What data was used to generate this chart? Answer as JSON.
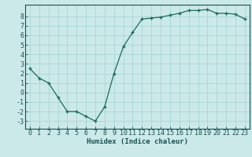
{
  "x": [
    0,
    1,
    2,
    3,
    4,
    5,
    6,
    7,
    8,
    9,
    10,
    11,
    12,
    13,
    14,
    15,
    16,
    17,
    18,
    19,
    20,
    21,
    22,
    23
  ],
  "y": [
    2.5,
    1.5,
    1.0,
    -0.5,
    -2.0,
    -2.0,
    -2.5,
    -3.0,
    -1.5,
    2.0,
    4.8,
    6.3,
    7.7,
    7.8,
    7.9,
    8.1,
    8.3,
    8.6,
    8.6,
    8.7,
    8.3,
    8.3,
    8.2,
    7.7
  ],
  "line_color": "#1a6b5a",
  "marker": "+",
  "marker_size": 3.5,
  "marker_lw": 1.0,
  "line_width": 0.9,
  "bg_color": "#cce9e9",
  "grid_color": "#aad4d4",
  "axis_color": "#1a5050",
  "tick_color": "#1a5050",
  "xlabel": "Humidex (Indice chaleur)",
  "ylabel": "",
  "xlim": [
    -0.5,
    23.5
  ],
  "ylim": [
    -3.8,
    9.2
  ],
  "yticks": [
    -3,
    -2,
    -1,
    0,
    1,
    2,
    3,
    4,
    5,
    6,
    7,
    8
  ],
  "xticks": [
    0,
    1,
    2,
    3,
    4,
    5,
    6,
    7,
    8,
    9,
    10,
    11,
    12,
    13,
    14,
    15,
    16,
    17,
    18,
    19,
    20,
    21,
    22,
    23
  ],
  "xlabel_fontsize": 6.5,
  "tick_fontsize": 6.0
}
